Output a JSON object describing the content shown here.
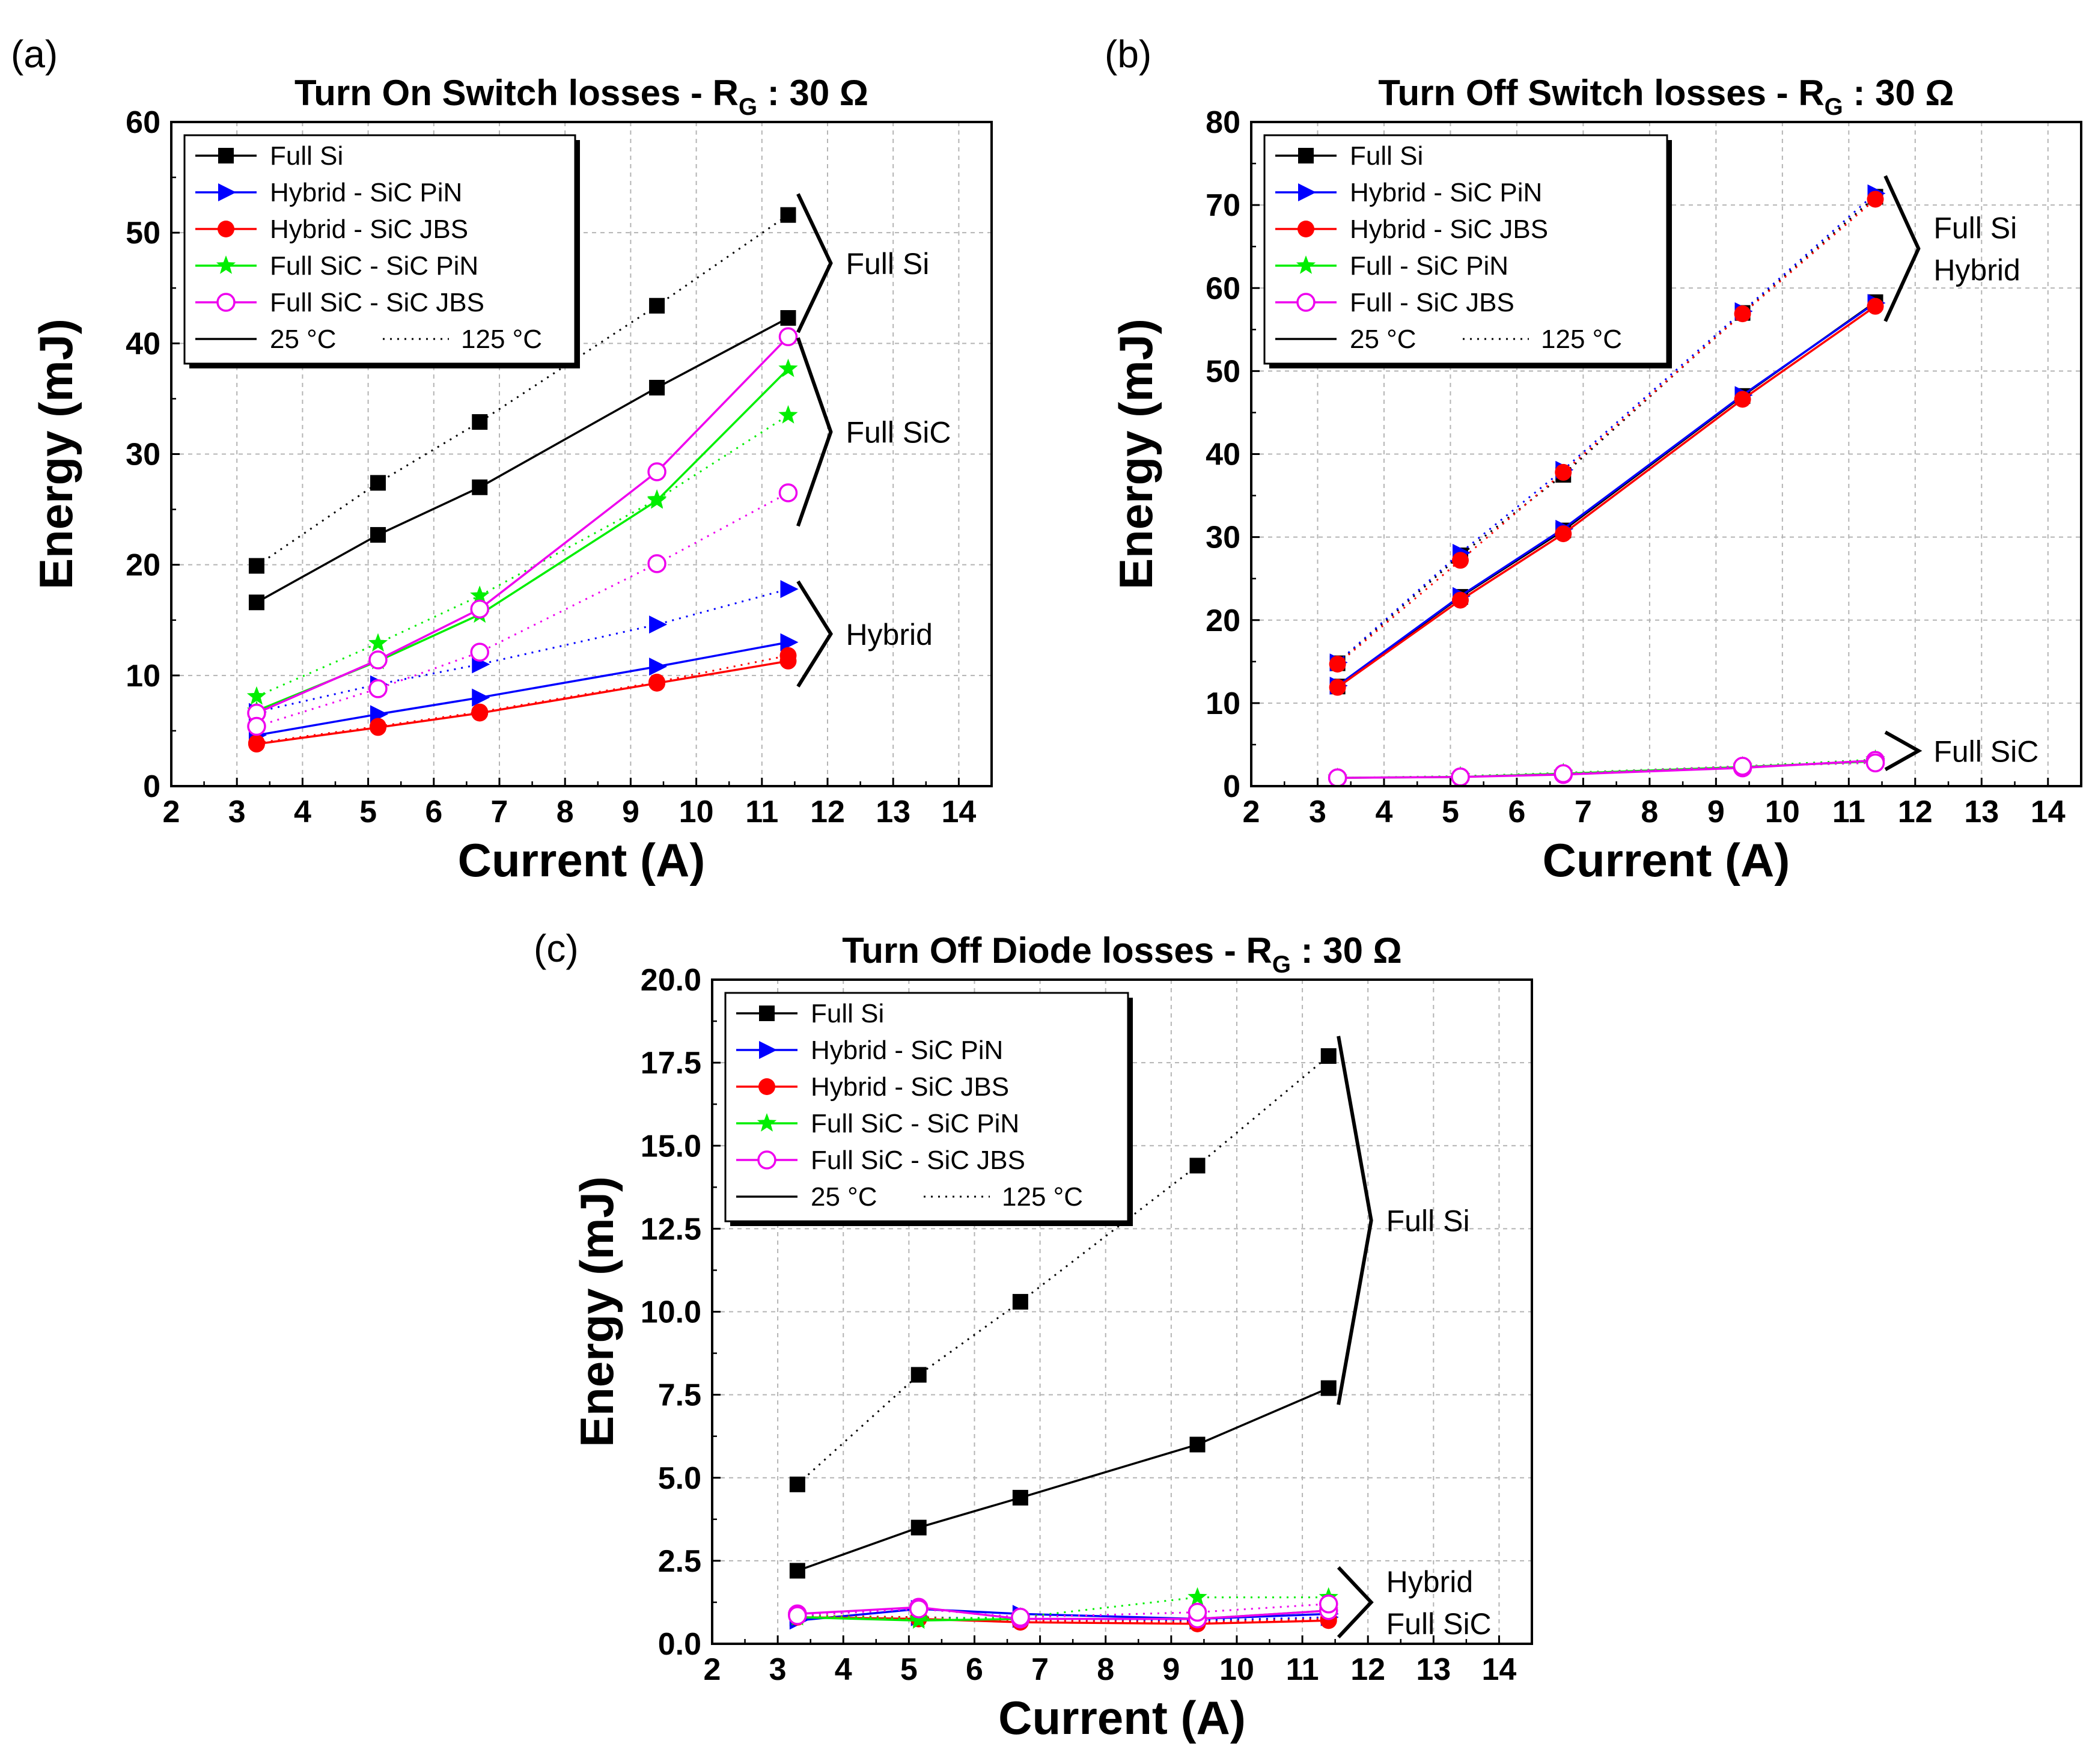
{
  "colors": {
    "full_si": "#000000",
    "hybrid_pin": "#0000ff",
    "hybrid_jbs": "#ff0000",
    "full_sic_pin": "#00ee00",
    "full_sic_jbs": "#ee00ee"
  },
  "legend_temps": [
    "25 °C",
    "125 °C"
  ],
  "chart_data": [
    {
      "type": "line",
      "panel_label": "(a)",
      "title": "Turn On Switch losses - R",
      "title_sub": "G",
      "title_suffix": " : 30 Ω",
      "xlabel": "Current (A)",
      "ylabel": "Energy (mJ)",
      "xlim": [
        2,
        14.5
      ],
      "ylim": [
        0,
        60
      ],
      "xticks": [
        "2",
        "3",
        "4",
        "5",
        "6",
        "7",
        "8",
        "9",
        "10",
        "11",
        "12",
        "13",
        "14"
      ],
      "yticks": [
        "0",
        "10",
        "20",
        "30",
        "40",
        "50",
        "60"
      ],
      "grid": true,
      "legend_position": "top-left",
      "x": [
        3.3,
        5.15,
        6.7,
        9.4,
        11.4
      ],
      "series": [
        {
          "name": "Full Si",
          "key": "full_si",
          "marker": "square",
          "temp": "25",
          "y": [
            16.6,
            22.7,
            27.0,
            36.0,
            42.3
          ]
        },
        {
          "key": "full_si",
          "marker": "square",
          "temp": "125",
          "y": [
            19.9,
            27.4,
            32.9,
            43.4,
            51.6
          ]
        },
        {
          "name": "Hybrid - SiC PiN",
          "key": "hybrid_pin",
          "marker": "triangle",
          "temp": "25",
          "y": [
            4.6,
            6.5,
            8.0,
            10.8,
            13.0
          ]
        },
        {
          "key": "hybrid_pin",
          "marker": "triangle",
          "temp": "125",
          "y": [
            6.7,
            9.2,
            11.0,
            14.6,
            17.8
          ]
        },
        {
          "name": "Hybrid - SiC JBS",
          "key": "hybrid_jbs",
          "marker": "circle",
          "temp": "25",
          "y": [
            3.8,
            5.3,
            6.6,
            9.3,
            11.3
          ]
        },
        {
          "key": "hybrid_jbs",
          "marker": "circle",
          "temp": "125",
          "y": [
            3.9,
            5.4,
            6.7,
            9.4,
            11.8
          ]
        },
        {
          "name": "Full SiC - SiC PiN",
          "key": "full_sic_pin",
          "marker": "star",
          "temp": "25",
          "y": [
            6.8,
            11.3,
            15.5,
            25.8,
            37.7
          ]
        },
        {
          "key": "full_sic_pin",
          "marker": "star",
          "temp": "125",
          "y": [
            8.1,
            12.9,
            17.2,
            25.9,
            33.5
          ]
        },
        {
          "name": "Full SiC - SiC JBS",
          "key": "full_sic_jbs",
          "marker": "open-circle",
          "temp": "25",
          "y": [
            6.6,
            11.4,
            16.0,
            28.4,
            40.6
          ]
        },
        {
          "key": "full_sic_jbs",
          "marker": "open-circle",
          "temp": "125",
          "y": [
            5.4,
            8.8,
            12.1,
            20.1,
            26.5
          ]
        }
      ],
      "annotations": [
        {
          "lines": [
            "Full Si"
          ],
          "span": [
            41.0,
            53.5
          ]
        },
        {
          "lines": [
            "Full SiC"
          ],
          "span": [
            23.5,
            40.5
          ]
        },
        {
          "lines": [
            "Hybrid"
          ],
          "span": [
            9.0,
            18.5
          ]
        }
      ]
    },
    {
      "type": "line",
      "panel_label": "(b)",
      "title": "Turn Off Switch losses - R",
      "title_sub": "G",
      "title_suffix": " : 30 Ω",
      "xlabel": "Current (A)",
      "ylabel": "Energy (mJ)",
      "xlim": [
        2,
        14.5
      ],
      "ylim": [
        0,
        80
      ],
      "xticks": [
        "2",
        "3",
        "4",
        "5",
        "6",
        "7",
        "8",
        "9",
        "10",
        "11",
        "12",
        "13",
        "14"
      ],
      "yticks": [
        "0",
        "10",
        "20",
        "30",
        "40",
        "50",
        "60",
        "70",
        "80"
      ],
      "grid": true,
      "legend_position": "top-left",
      "x": [
        3.3,
        5.15,
        6.7,
        9.4,
        11.4
      ],
      "series": [
        {
          "name": "Full Si",
          "key": "full_si",
          "marker": "square",
          "temp": "25",
          "y": [
            12.0,
            22.8,
            30.8,
            47.0,
            58.3
          ]
        },
        {
          "key": "full_si",
          "marker": "square",
          "temp": "125",
          "y": [
            14.8,
            27.8,
            37.5,
            57.0,
            71.0
          ]
        },
        {
          "name": "Hybrid - SiC PiN",
          "key": "hybrid_pin",
          "marker": "triangle",
          "temp": "25",
          "y": [
            12.1,
            22.9,
            31.0,
            47.1,
            58.2
          ]
        },
        {
          "key": "hybrid_pin",
          "marker": "triangle",
          "temp": "125",
          "y": [
            14.9,
            28.1,
            38.1,
            57.2,
            71.4
          ]
        },
        {
          "name": "Hybrid - SiC JBS",
          "key": "hybrid_jbs",
          "marker": "circle",
          "temp": "25",
          "y": [
            11.9,
            22.4,
            30.4,
            46.6,
            57.8
          ]
        },
        {
          "key": "hybrid_jbs",
          "marker": "circle",
          "temp": "125",
          "y": [
            14.7,
            27.2,
            37.8,
            56.9,
            70.7
          ]
        },
        {
          "name": "Full - SiC PiN",
          "key": "full_sic_pin",
          "marker": "star",
          "temp": "25",
          "y": [
            1.0,
            1.1,
            1.5,
            2.3,
            3.0
          ]
        },
        {
          "key": "full_sic_pin",
          "marker": "star",
          "temp": "125",
          "y": [
            1.0,
            1.2,
            1.6,
            2.4,
            3.2
          ]
        },
        {
          "name": "Full - SiC JBS",
          "key": "full_sic_jbs",
          "marker": "open-circle",
          "temp": "25",
          "y": [
            1.0,
            1.1,
            1.4,
            2.2,
            3.1
          ]
        },
        {
          "key": "full_sic_jbs",
          "marker": "open-circle",
          "temp": "125",
          "y": [
            1.0,
            1.1,
            1.5,
            2.4,
            2.8
          ]
        }
      ],
      "annotations": [
        {
          "lines": [
            "Full Si",
            "Hybrid"
          ],
          "span": [
            56.0,
            73.5
          ]
        },
        {
          "lines": [
            "Full SiC"
          ],
          "span": [
            2.0,
            6.5
          ]
        }
      ]
    },
    {
      "type": "line",
      "panel_label": "(c)",
      "title": "Turn Off Diode losses - R",
      "title_sub": "G",
      "title_suffix": " : 30 Ω",
      "xlabel": "Current (A)",
      "ylabel": "Energy (mJ)",
      "xlim": [
        2,
        14.5
      ],
      "ylim": [
        0,
        20
      ],
      "xticks": [
        "2",
        "3",
        "4",
        "5",
        "6",
        "7",
        "8",
        "9",
        "10",
        "11",
        "12",
        "13",
        "14"
      ],
      "yticks": [
        "0.0",
        "2.5",
        "5.0",
        "7.5",
        "10.0",
        "12.5",
        "15.0",
        "17.5",
        "20.0"
      ],
      "grid": true,
      "legend_position": "top-left",
      "x": [
        3.3,
        5.15,
        6.7,
        9.4,
        11.4
      ],
      "series": [
        {
          "name": "Full Si",
          "key": "full_si",
          "marker": "square",
          "temp": "25",
          "y": [
            2.2,
            3.5,
            4.4,
            6.0,
            7.7
          ]
        },
        {
          "key": "full_si",
          "marker": "square",
          "temp": "125",
          "y": [
            4.8,
            8.1,
            10.3,
            14.4,
            17.7
          ]
        },
        {
          "name": "Hybrid - SiC PiN",
          "key": "hybrid_pin",
          "marker": "triangle",
          "temp": "25",
          "y": [
            0.7,
            1.05,
            0.9,
            0.75,
            0.9
          ]
        },
        {
          "key": "hybrid_pin",
          "marker": "triangle",
          "temp": "125",
          "y": [
            0.8,
            0.8,
            0.75,
            0.7,
            0.8
          ]
        },
        {
          "name": "Hybrid - SiC JBS",
          "key": "hybrid_jbs",
          "marker": "circle",
          "temp": "25",
          "y": [
            0.8,
            0.75,
            0.65,
            0.6,
            0.7
          ]
        },
        {
          "key": "hybrid_jbs",
          "marker": "circle",
          "temp": "125",
          "y": [
            0.85,
            0.8,
            0.7,
            0.65,
            0.75
          ]
        },
        {
          "name": "Full SiC - SiC PiN",
          "key": "full_sic_pin",
          "marker": "star",
          "temp": "25",
          "y": [
            0.8,
            0.7,
            0.75,
            0.75,
            1.0
          ]
        },
        {
          "key": "full_sic_pin",
          "marker": "star",
          "temp": "125",
          "y": [
            0.85,
            0.75,
            0.8,
            1.4,
            1.4
          ]
        },
        {
          "name": "Full SiC - SiC JBS",
          "key": "full_sic_jbs",
          "marker": "open-circle",
          "temp": "25",
          "y": [
            0.9,
            1.1,
            0.75,
            0.75,
            1.0
          ]
        },
        {
          "key": "full_sic_jbs",
          "marker": "open-circle",
          "temp": "125",
          "y": [
            0.85,
            1.05,
            0.8,
            0.95,
            1.2
          ]
        }
      ],
      "annotations": [
        {
          "lines": [
            "Full Si"
          ],
          "span": [
            7.2,
            18.3
          ]
        },
        {
          "lines": [
            "Hybrid",
            "Full SiC"
          ],
          "span": [
            0.2,
            2.3
          ]
        }
      ]
    }
  ]
}
